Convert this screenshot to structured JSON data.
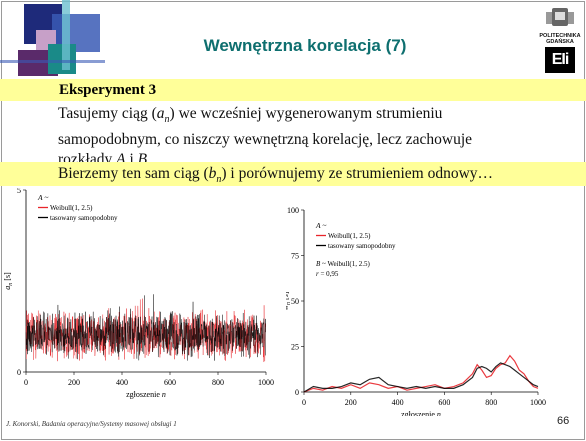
{
  "slide": {
    "title": "Wewnętrzna korelacja (7)",
    "logo_line1": "POLITECHNIKA",
    "logo_line2": "GDAŃSKA",
    "logo_letters": "EIi",
    "section_label": "Eksperyment 3",
    "para1": [
      {
        "t": "Tasujemy ciąg ("
      },
      {
        "t": "a",
        "i": true
      },
      {
        "t": "n",
        "i": true,
        "sub": true
      },
      {
        "t": ") we wcześniej wygenerowanym strumieniu"
      },
      {
        "br": true
      },
      {
        "t": "samopodobnym, co niszczy wewnętrzną korelację, lecz zachowuje"
      },
      {
        "br": true
      },
      {
        "t": "rozkłady "
      },
      {
        "t": "A",
        "i": true
      },
      {
        "t": " i "
      },
      {
        "t": "B",
        "i": true
      },
      {
        "t": "."
      }
    ],
    "para2": [
      {
        "t": "Bierzemy ten sam ciąg ("
      },
      {
        "t": "b",
        "i": true
      },
      {
        "t": "n",
        "i": true,
        "sub": true
      },
      {
        "t": ") i porównujemy ze strumieniem odnowy…"
      }
    ],
    "footer": "J. Konorski, Badania operacyjne/Systemy masowej obsługi 1",
    "page_number": "66",
    "colors": {
      "title": "#0e6f6f",
      "band": "#ffff99",
      "red_series": "#e8262b",
      "black_series": "#000000"
    }
  },
  "chart_data": [
    {
      "type": "line",
      "ylabel": "a",
      "ylabel_sub": "n",
      "ylabel_unit": " [s]",
      "xlabel": "zgłoszenie n",
      "xlim": [
        0,
        1000
      ],
      "ylim": [
        0,
        5
      ],
      "x_ticks": [
        "0",
        "200",
        "400",
        "600",
        "800",
        "1000"
      ],
      "y_ticks": [
        "0",
        "5"
      ],
      "legend_title": "A ~",
      "legend_position": "top-left",
      "series": [
        {
          "name": "Weibull(1, 2.5)",
          "color": "#e8262b",
          "mean": 1.0,
          "spread": 0.55
        },
        {
          "name": "tasowany samopodobny",
          "color": "#000000",
          "mean": 1.0,
          "spread": 0.5
        }
      ],
      "n_points": 1000
    },
    {
      "type": "line",
      "ylabel": "w",
      "ylabel_sub": "n",
      "ylabel_unit": " [s]",
      "xlabel": "zgłoszenie n",
      "xlim": [
        0,
        1000
      ],
      "ylim": [
        0,
        100
      ],
      "x_ticks": [
        "0",
        "200",
        "400",
        "600",
        "800",
        "1000"
      ],
      "y_ticks": [
        "0",
        "25",
        "50",
        "75",
        "100"
      ],
      "legend_title": "A ~",
      "legend_position": "top-left",
      "annotation_line1": "B ~ Weibull(1, 2.5)",
      "annotation_line2": "r = 0,95",
      "series": [
        {
          "name": "Weibull(1, 2.5)",
          "color": "#e8262b",
          "x": [
            0,
            40,
            80,
            120,
            160,
            200,
            240,
            280,
            320,
            360,
            400,
            440,
            480,
            520,
            560,
            600,
            640,
            680,
            720,
            740,
            760,
            780,
            800,
            820,
            840,
            860,
            880,
            900,
            920,
            940,
            960,
            980,
            1000
          ],
          "y": [
            0,
            2,
            1,
            3,
            2,
            4,
            2,
            5,
            4,
            2,
            3,
            1,
            2,
            3,
            4,
            2,
            3,
            5,
            10,
            15,
            12,
            8,
            9,
            13,
            15,
            16,
            20,
            17,
            12,
            10,
            6,
            3,
            2
          ]
        },
        {
          "name": "tasowany samopodobny",
          "color": "#000000",
          "x": [
            0,
            40,
            80,
            120,
            160,
            200,
            240,
            280,
            320,
            360,
            400,
            440,
            480,
            520,
            560,
            600,
            640,
            680,
            720,
            740,
            760,
            780,
            800,
            820,
            840,
            860,
            880,
            900,
            920,
            940,
            960,
            980,
            1000
          ],
          "y": [
            0,
            3,
            2,
            2,
            3,
            5,
            4,
            7,
            8,
            4,
            3,
            2,
            3,
            2,
            3,
            2,
            2,
            4,
            8,
            13,
            14,
            13,
            11,
            14,
            16,
            15,
            14,
            12,
            10,
            8,
            6,
            4,
            3
          ]
        }
      ]
    }
  ]
}
